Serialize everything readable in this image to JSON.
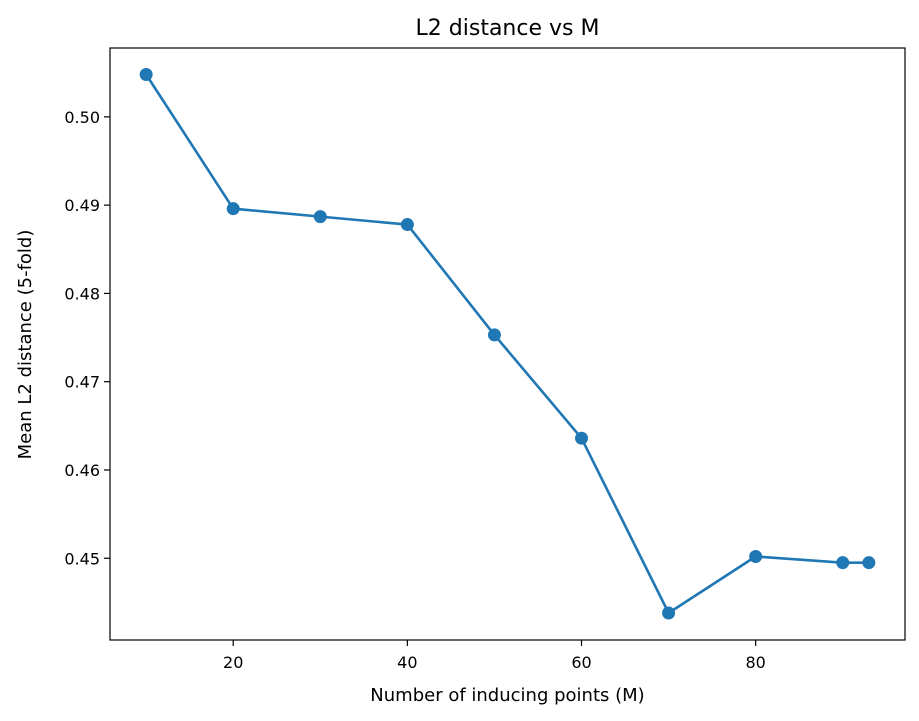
{
  "chart_data": {
    "type": "line",
    "title": "L2 distance vs M",
    "xlabel": "Number of inducing points (M)",
    "ylabel": "Mean L2 distance (5-fold)",
    "xlim": [
      5.85,
      97.15
    ],
    "ylim": [
      0.44074,
      0.5078
    ],
    "xticks": [
      20,
      40,
      60,
      80
    ],
    "xtick_labels": [
      "20",
      "40",
      "60",
      "80"
    ],
    "yticks": [
      0.45,
      0.46,
      0.47,
      0.48,
      0.49,
      0.5
    ],
    "ytick_labels": [
      "0.45",
      "0.46",
      "0.47",
      "0.48",
      "0.49",
      "0.50"
    ],
    "grid": false,
    "series": [
      {
        "color": "#1f77b4",
        "marker": "circle",
        "x": [
          10,
          20,
          30,
          40,
          50,
          60,
          70,
          80,
          90,
          93
        ],
        "y": [
          0.5048,
          0.4896,
          0.4887,
          0.4878,
          0.4753,
          0.4636,
          0.4438,
          0.4502,
          0.4495,
          0.4495
        ]
      }
    ]
  }
}
